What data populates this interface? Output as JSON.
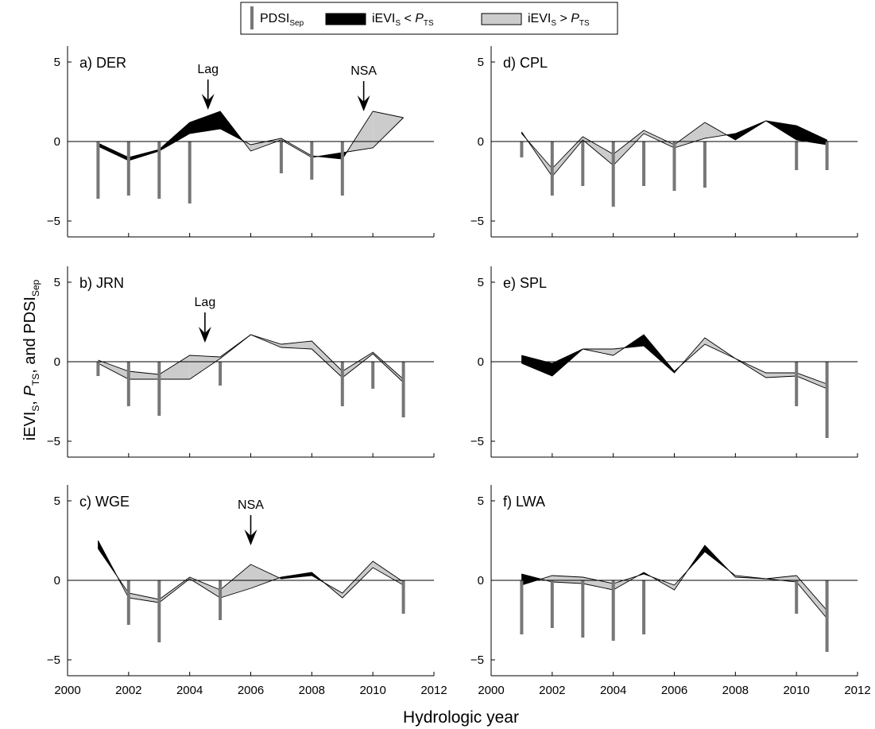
{
  "figure": {
    "ylabel": "iEVI_S, P_TS, and PDSI_Sep",
    "ylabel_parts": [
      "iEVI",
      "S",
      ", ",
      "P",
      "TS",
      ", and PDSI",
      "Sep"
    ],
    "xlabel": "Hydrologic year"
  },
  "legend": {
    "items": [
      {
        "kind": "bar",
        "main": "PDSI",
        "sub": "Sep",
        "color": "#777777"
      },
      {
        "kind": "fill",
        "main": "iEVI",
        "sub": "S",
        "op": "<",
        "p": "P",
        "psub": "TS",
        "color": "#000000"
      },
      {
        "kind": "fill",
        "main": "iEVI",
        "sub": "S",
        "op": ">",
        "p": "P",
        "psub": "TS",
        "color": "#cccccc"
      }
    ]
  },
  "colors": {
    "pdsi_bar": "#777777",
    "ievi_below_pts": "#000000",
    "ievi_above_pts": "#cccccc",
    "axis": "#000000"
  },
  "chart_data": [
    {
      "type": "area",
      "panel": "a) DER",
      "x_ticks": [
        2000,
        2002,
        2004,
        2006,
        2008,
        2010,
        2012
      ],
      "y_ticks": [
        5,
        0,
        -5
      ],
      "xlim": [
        2000,
        2012
      ],
      "ylim": [
        -6,
        6
      ],
      "show_x_ticklabels": false,
      "years": [
        2001,
        2002,
        2003,
        2004,
        2005,
        2006,
        2007,
        2008,
        2009,
        2010,
        2011
      ],
      "series": [
        {
          "name": "iEVI_S",
          "values": [
            -0.3,
            -1.2,
            -0.6,
            0.5,
            0.8,
            -0.2,
            0.2,
            -0.9,
            -1.1,
            1.9,
            1.5
          ]
        },
        {
          "name": "P_TS",
          "values": [
            -0.1,
            -1.0,
            -0.5,
            1.2,
            1.9,
            -0.6,
            0.1,
            -1.0,
            -0.7,
            -0.4,
            1.5
          ]
        },
        {
          "name": "PDSI_Sep",
          "values": [
            -3.6,
            -3.4,
            -3.6,
            -3.9,
            null,
            null,
            -2.0,
            -2.4,
            -3.4,
            null,
            null
          ]
        }
      ],
      "annotations": [
        {
          "text": "Lag",
          "x": 2004.6,
          "y": 1.9
        },
        {
          "text": "NSA",
          "x": 2009.7,
          "y": 1.8
        }
      ]
    },
    {
      "type": "area",
      "panel": "b) JRN",
      "x_ticks": [
        2000,
        2002,
        2004,
        2006,
        2008,
        2010,
        2012
      ],
      "y_ticks": [
        5,
        0,
        -5
      ],
      "xlim": [
        2000,
        2012
      ],
      "ylim": [
        -6,
        6
      ],
      "show_x_ticklabels": false,
      "years": [
        2001,
        2002,
        2003,
        2004,
        2005,
        2006,
        2007,
        2008,
        2009,
        2010,
        2011
      ],
      "series": [
        {
          "name": "iEVI_S",
          "values": [
            0.1,
            -0.6,
            -0.8,
            0.4,
            0.3,
            1.7,
            1.1,
            1.3,
            -0.6,
            0.6,
            -1.1
          ]
        },
        {
          "name": "P_TS",
          "values": [
            -0.1,
            -1.1,
            -1.1,
            -1.1,
            0.2,
            1.7,
            0.9,
            0.8,
            -1.0,
            0.5,
            -1.3
          ]
        },
        {
          "name": "PDSI_Sep",
          "values": [
            -0.9,
            -2.8,
            -3.4,
            null,
            -1.5,
            null,
            null,
            null,
            -2.8,
            -1.7,
            -3.5
          ]
        }
      ],
      "annotations": [
        {
          "text": "Lag",
          "x": 2004.5,
          "y": 1.1
        }
      ]
    },
    {
      "type": "area",
      "panel": "c) WGE",
      "x_ticks": [
        2000,
        2002,
        2004,
        2006,
        2008,
        2010,
        2012
      ],
      "y_ticks": [
        5,
        0,
        -5
      ],
      "xlim": [
        2000,
        2012
      ],
      "ylim": [
        -6,
        6
      ],
      "show_x_ticklabels": true,
      "years": [
        2001,
        2002,
        2003,
        2004,
        2005,
        2006,
        2007,
        2008,
        2009,
        2010,
        2011
      ],
      "series": [
        {
          "name": "iEVI_S",
          "values": [
            2.0,
            -0.8,
            -1.2,
            0.2,
            -0.6,
            1.0,
            0.1,
            0.3,
            -0.8,
            1.2,
            -0.1
          ]
        },
        {
          "name": "P_TS",
          "values": [
            2.5,
            -1.1,
            -1.4,
            0.1,
            -1.1,
            -0.5,
            0.2,
            0.5,
            -1.1,
            0.8,
            -0.3
          ]
        },
        {
          "name": "PDSI_Sep",
          "values": [
            null,
            -2.8,
            -3.9,
            null,
            -2.5,
            null,
            null,
            null,
            null,
            null,
            -2.1
          ]
        }
      ],
      "annotations": [
        {
          "text": "NSA",
          "x": 2006.0,
          "y": 2.1
        }
      ]
    },
    {
      "type": "area",
      "panel": "d) CPL",
      "x_ticks": [
        2000,
        2002,
        2004,
        2006,
        2008,
        2010,
        2012
      ],
      "y_ticks": [
        5,
        0,
        -5
      ],
      "xlim": [
        2000,
        2012
      ],
      "ylim": [
        -6,
        6
      ],
      "show_x_ticklabels": false,
      "years": [
        2001,
        2002,
        2003,
        2004,
        2005,
        2006,
        2007,
        2008,
        2009,
        2010,
        2011
      ],
      "series": [
        {
          "name": "iEVI_S",
          "values": [
            0.5,
            -1.7,
            0.3,
            -0.8,
            0.7,
            -0.2,
            1.2,
            0.1,
            1.3,
            0.1,
            -0.2
          ]
        },
        {
          "name": "P_TS",
          "values": [
            0.6,
            -2.2,
            0.1,
            -1.5,
            0.5,
            -0.4,
            0.2,
            0.5,
            1.3,
            1.0,
            0.1
          ]
        },
        {
          "name": "PDSI_Sep",
          "values": [
            -1.0,
            -3.4,
            -2.8,
            -4.1,
            -2.8,
            -3.1,
            -2.9,
            null,
            null,
            -1.8,
            -1.8
          ]
        }
      ],
      "annotations": []
    },
    {
      "type": "area",
      "panel": "e) SPL",
      "x_ticks": [
        2000,
        2002,
        2004,
        2006,
        2008,
        2010,
        2012
      ],
      "y_ticks": [
        5,
        0,
        -5
      ],
      "xlim": [
        2000,
        2012
      ],
      "ylim": [
        -6,
        6
      ],
      "show_x_ticklabels": false,
      "years": [
        2001,
        2002,
        2003,
        2004,
        2005,
        2006,
        2007,
        2008,
        2009,
        2010,
        2011
      ],
      "series": [
        {
          "name": "iEVI_S",
          "values": [
            -0.1,
            -0.9,
            0.8,
            0.8,
            1.0,
            -0.7,
            1.5,
            0.2,
            -0.7,
            -0.7,
            -1.4
          ]
        },
        {
          "name": "P_TS",
          "values": [
            0.4,
            -0.1,
            0.8,
            0.4,
            1.7,
            -0.6,
            1.1,
            0.2,
            -1.0,
            -0.9,
            -1.7
          ]
        },
        {
          "name": "PDSI_Sep",
          "values": [
            null,
            null,
            null,
            null,
            null,
            null,
            null,
            null,
            null,
            -2.8,
            -4.8
          ]
        }
      ],
      "annotations": []
    },
    {
      "type": "area",
      "panel": "f) LWA",
      "x_ticks": [
        2000,
        2002,
        2004,
        2006,
        2008,
        2010,
        2012
      ],
      "y_ticks": [
        5,
        0,
        -5
      ],
      "xlim": [
        2000,
        2012
      ],
      "ylim": [
        -6,
        6
      ],
      "show_x_ticklabels": true,
      "years": [
        2001,
        2002,
        2003,
        2004,
        2005,
        2006,
        2007,
        2008,
        2009,
        2010,
        2011
      ],
      "series": [
        {
          "name": "iEVI_S",
          "values": [
            -0.3,
            0.3,
            0.2,
            -0.2,
            0.4,
            -0.3,
            1.8,
            0.3,
            0.1,
            0.3,
            -1.9
          ]
        },
        {
          "name": "P_TS",
          "values": [
            0.4,
            -0.1,
            -0.2,
            -0.6,
            0.5,
            -0.6,
            2.2,
            0.2,
            0.1,
            -0.1,
            -2.4
          ]
        },
        {
          "name": "PDSI_Sep",
          "values": [
            -3.4,
            -3.0,
            -3.6,
            -3.8,
            -3.4,
            null,
            null,
            null,
            null,
            -2.1,
            -4.5
          ]
        }
      ],
      "annotations": []
    }
  ]
}
